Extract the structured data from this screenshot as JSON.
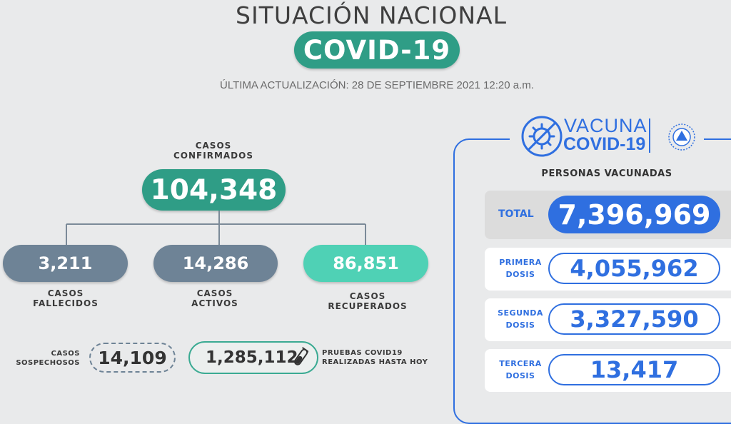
{
  "header": {
    "title": "SITUACIÓN NACIONAL",
    "subtitle": "COVID-19",
    "updated": "ÚLTIMA ACTUALIZACIÓN: 28 DE SEPTIEMBRE 2021 12:20 a.m."
  },
  "cases": {
    "confirmed_label_1": "CASOS",
    "confirmed_label_2": "CONFIRMADOS",
    "confirmed": "104,348",
    "deaths": "3,211",
    "deaths_label_1": "CASOS",
    "deaths_label_2": "FALLECIDOS",
    "active": "14,286",
    "active_label_1": "CASOS",
    "active_label_2": "ACTIVOS",
    "recovered": "86,851",
    "recovered_label_1": "CASOS",
    "recovered_label_2": "RECUPERADOS",
    "suspected_label_1": "CASOS",
    "suspected_label_2": "SOSPECHOSOS",
    "suspected": "14,109",
    "tests": "1,285,112",
    "tests_label_1": "PRUEBAS COVID19",
    "tests_label_2": "REALIZADAS HASTA HOY"
  },
  "vaccine": {
    "logo_line_1": "VACUNA",
    "logo_line_2": "COVID-19",
    "heading": "PERSONAS VACUNADAS",
    "total_label": "TOTAL",
    "total": "7,396,969",
    "doses": [
      {
        "label_1": "PRIMERA",
        "label_2": "DOSIS",
        "value": "4,055,962"
      },
      {
        "label_1": "SEGUNDA",
        "label_2": "DOSIS",
        "value": "3,327,590"
      },
      {
        "label_1": "TERCERA",
        "label_2": "DOSIS",
        "value": "13,417"
      }
    ]
  },
  "colors": {
    "teal": "#2f9d86",
    "mint": "#4fd1b5",
    "slate": "#6e8396",
    "blue": "#2f6fe0",
    "background": "#e9eaeb"
  },
  "icons": [
    "virus-syringe-icon",
    "coat-of-arms-icon",
    "test-tube-icon"
  ]
}
